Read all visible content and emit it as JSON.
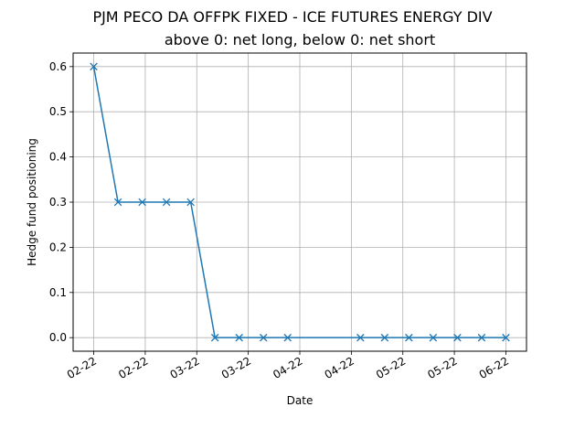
{
  "chart_data": {
    "type": "line",
    "title": "PJM PECO DA OFFPK FIXED - ICE FUTURES ENERGY DIV",
    "subtitle": "above 0: net long, below 0: net short",
    "xlabel": "Date",
    "ylabel": "Hedge fund positioning",
    "grid": true,
    "marker": "x",
    "line_color": "#1f77b4",
    "x_ticks": [
      "02-22",
      "02-22",
      "03-22",
      "03-22",
      "04-22",
      "04-22",
      "05-22",
      "05-22",
      "06-22"
    ],
    "y_ticks": [
      "0.0",
      "0.1",
      "0.2",
      "0.3",
      "0.4",
      "0.5",
      "0.6"
    ],
    "ylim": [
      -0.03,
      0.63
    ],
    "x": [
      "2022-02-01",
      "2022-02-08",
      "2022-02-15",
      "2022-02-22",
      "2022-03-01",
      "2022-03-08",
      "2022-03-15",
      "2022-03-22",
      "2022-03-29",
      "2022-04-19",
      "2022-04-26",
      "2022-05-03",
      "2022-05-10",
      "2022-05-17",
      "2022-05-24",
      "2022-05-31"
    ],
    "values": [
      0.6,
      0.3,
      0.3,
      0.3,
      0.3,
      0.0,
      0.0,
      0.0,
      0.0,
      0.0,
      0.0,
      0.0,
      0.0,
      0.0,
      0.0,
      0.0
    ]
  }
}
